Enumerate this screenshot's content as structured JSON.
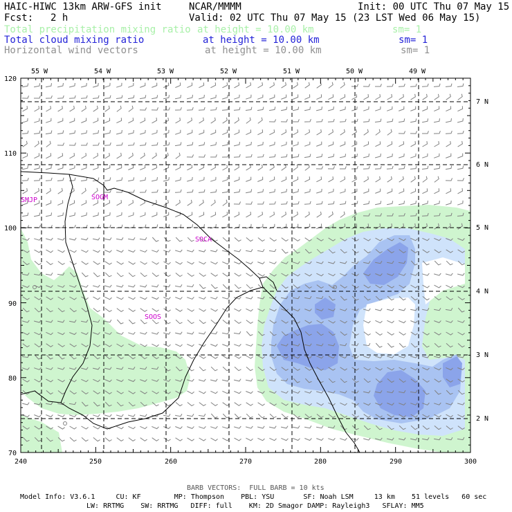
{
  "header": {
    "model_title": "HAIC-HIWC 13km ARW-GFS init",
    "org": "NCAR/MMMM",
    "init": "Init: 00 UTC Thu 07 May 15",
    "fcst_label": "Fcst:",
    "fcst_value": "2 h",
    "valid": "Valid: 02 UTC Thu 07 May 15 (23 LST Wed 06 May 15)",
    "fields": [
      {
        "name": "Total precipitation mixing ratio",
        "height": "at height = 10.00 km",
        "sm": "sm= 1",
        "color": "#a8f0a8"
      },
      {
        "name": "Total cloud mixing ratio",
        "height": "at height = 10.00 km",
        "sm": "sm= 1",
        "color": "#2323d8"
      },
      {
        "name": "Horizontal wind vectors",
        "height": "at height = 10.00 km",
        "sm": "sm= 1",
        "color": "#909090"
      }
    ]
  },
  "map": {
    "lon_labels": [
      "55 W",
      "54 W",
      "53 W",
      "52 W",
      "51 W",
      "50 W",
      "49 W"
    ],
    "lat_labels": [
      "7 N",
      "6 N",
      "5 N",
      "4 N",
      "3 N",
      "2 N"
    ],
    "x_ticks": [
      "240",
      "250",
      "260",
      "270",
      "280",
      "290",
      "300"
    ],
    "y_ticks": [
      "70",
      "80",
      "90",
      "100",
      "110",
      "120"
    ],
    "stations": [
      "SMJP",
      "SOGM",
      "SOCA",
      "SOOS"
    ],
    "colors": {
      "precip": "#cff5cf",
      "cloud_light": "#cfe3fb",
      "cloud_mid": "#a9c3f2",
      "cloud_dark": "#8ba4ea",
      "station": "#cc00cc",
      "barb": "#808080"
    }
  },
  "footer": {
    "barb_note": "BARB VECTORS:  FULL BARB = 10 kts",
    "model_info": "Model Info: V3.6.1     CU: KF        MP: Thompson    PBL: YSU       SF: Noah LSM     13 km    51 levels   60 sec",
    "model_info2": "LW: RRTMG    SW: RRTMG   DIFF: full    KM: 2D Smagor DAMP: Rayleigh3   SFLAY: MM5"
  }
}
